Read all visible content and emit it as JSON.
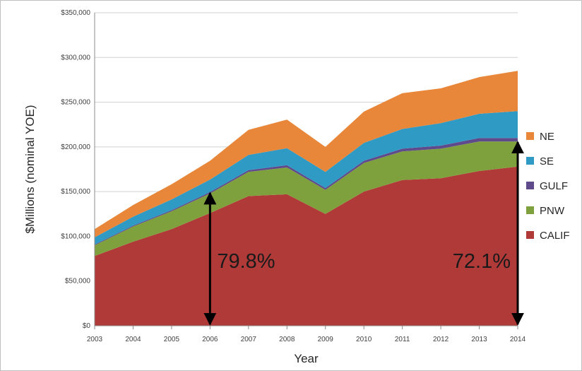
{
  "chart_data": {
    "type": "area",
    "stacked": true,
    "title": "",
    "xlabel": "Year",
    "ylabel": "$Millions (nominal YOE)",
    "x": [
      "2003",
      "2004",
      "2005",
      "2006",
      "2007",
      "2008",
      "2009",
      "2010",
      "2011",
      "2012",
      "2013",
      "2014"
    ],
    "ylim": [
      0,
      350000
    ],
    "yticks": [
      "$0",
      "$50,000",
      "$100,000",
      "$150,000",
      "$200,000",
      "$250,000",
      "$300,000",
      "$350,000"
    ],
    "grid": true,
    "legend_position": "right",
    "series": [
      {
        "name": "CALIF",
        "color": "#b03a38",
        "values": [
          78000,
          94000,
          108000,
          126000,
          145000,
          147000,
          125000,
          150000,
          163000,
          165000,
          173000,
          178000
        ]
      },
      {
        "name": "PNW",
        "color": "#7fa13d",
        "values": [
          12000,
          17000,
          20000,
          22000,
          27000,
          30000,
          27000,
          32000,
          32000,
          33000,
          33000,
          28000
        ]
      },
      {
        "name": "GULF",
        "color": "#5f4b8b",
        "values": [
          800,
          1000,
          1200,
          1500,
          2000,
          2500,
          2000,
          2500,
          3000,
          3500,
          4000,
          4000
        ]
      },
      {
        "name": "SE",
        "color": "#2f9ac4",
        "values": [
          8000,
          10000,
          12000,
          14000,
          17000,
          19000,
          18000,
          20000,
          22000,
          25000,
          27000,
          30000
        ]
      },
      {
        "name": "NE",
        "color": "#e8873a",
        "values": [
          9200,
          13000,
          17000,
          21000,
          28000,
          32000,
          28000,
          35000,
          40000,
          39000,
          41000,
          45000
        ]
      }
    ],
    "annotations": [
      {
        "text": "79.8%",
        "x": "2006",
        "arrow_from": 0,
        "arrow_to": 150000
      },
      {
        "text": "72.1%",
        "x": "2014",
        "arrow_from": 0,
        "arrow_to": 207000
      }
    ]
  },
  "colors": {
    "grid": "#d0d0d0",
    "axis": "#8c8c8c",
    "arrow": "#000000"
  }
}
